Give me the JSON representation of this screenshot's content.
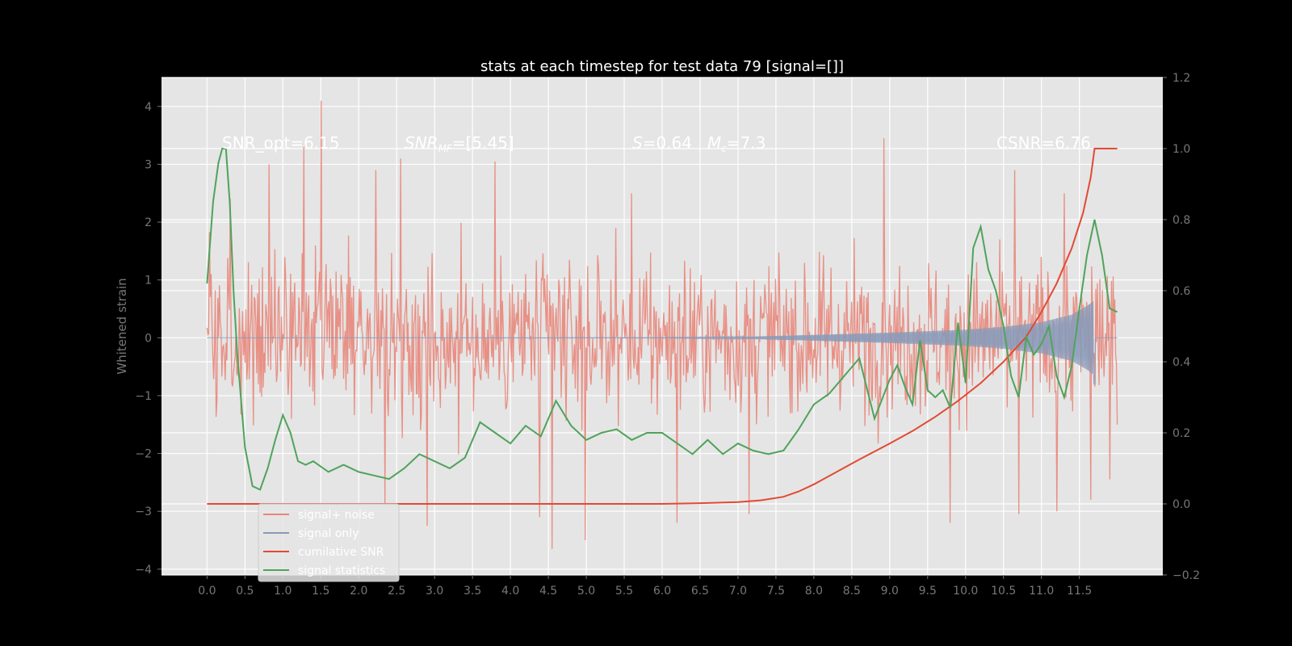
{
  "chart_data": {
    "type": "line",
    "title": "stats at each timestep for test data 79 [signal=[]]",
    "ylabel": "Whitened strain",
    "xlim": [
      -0.6,
      12.6
    ],
    "ylim_left": [
      -4.1,
      4.5
    ],
    "ylim_right": [
      -0.2,
      1.2
    ],
    "x_ticks": [
      0.0,
      0.5,
      1.0,
      1.5,
      2.0,
      2.5,
      3.0,
      3.5,
      4.0,
      4.5,
      5.0,
      5.5,
      6.0,
      6.5,
      7.0,
      7.5,
      8.0,
      8.5,
      9.0,
      9.5,
      10.0,
      10.5,
      11.0,
      11.5
    ],
    "x_tick_labels": [
      "0.0",
      "0.5",
      "1.0",
      "1.5",
      "2.0",
      "2.5",
      "3.0",
      "3.5",
      "4.0",
      "4.5",
      "5.0",
      "5.5",
      "6.0",
      "6.5",
      "7.0",
      "7.5",
      "8.0",
      "8.5",
      "9.0",
      "9.5",
      "10.0",
      "10.5",
      "11.0",
      "11.5"
    ],
    "y_left_ticks": [
      -4,
      -3,
      -2,
      -1,
      0,
      1,
      2,
      3,
      4
    ],
    "y_left_tick_labels": [
      "−4",
      "−3",
      "−2",
      "−1",
      "0",
      "1",
      "2",
      "3",
      "4"
    ],
    "y_right_ticks": [
      -0.2,
      0.0,
      0.2,
      0.4,
      0.6,
      0.8,
      1.0,
      1.2
    ],
    "y_right_tick_labels": [
      "−0.2",
      "0.0",
      "0.2",
      "0.4",
      "0.6",
      "0.8",
      "1.0",
      "1.2"
    ],
    "grid": true,
    "legend_placement": "lower-left",
    "annotations": {
      "snr_opt": "SNR_opt=6.15",
      "snr_mf_base": "SNR",
      "snr_mf_sub": "MF",
      "snr_mf_value": "=[5.45]",
      "s_label": "S",
      "s_value": "=0.64",
      "mc_base": "M",
      "mc_sub": "c",
      "mc_value": "=7.3",
      "csnr": "CSNR=6.76"
    },
    "series": [
      {
        "name": "signal+ noise",
        "color": "#e8867a",
        "axis": "left",
        "x_start": 0.0,
        "x_end": 12.0,
        "amplitude_1sigma": 0.95,
        "peaks": [
          {
            "x": 0.31,
            "y": 2.4
          },
          {
            "x": 0.82,
            "y": 3.0
          },
          {
            "x": 1.28,
            "y": 3.3
          },
          {
            "x": 1.5,
            "y": 4.1
          },
          {
            "x": 2.22,
            "y": 2.9
          },
          {
            "x": 2.55,
            "y": 3.1
          },
          {
            "x": 3.8,
            "y": 3.05
          },
          {
            "x": 5.6,
            "y": 2.5
          },
          {
            "x": 8.92,
            "y": 3.45
          },
          {
            "x": 10.65,
            "y": 2.9
          },
          {
            "x": 11.3,
            "y": 2.5
          },
          {
            "x": 2.35,
            "y": -2.9
          },
          {
            "x": 2.9,
            "y": -3.25
          },
          {
            "x": 4.38,
            "y": -3.1
          },
          {
            "x": 4.55,
            "y": -3.65
          },
          {
            "x": 4.99,
            "y": -3.5
          },
          {
            "x": 6.2,
            "y": -3.2
          },
          {
            "x": 7.15,
            "y": -3.05
          },
          {
            "x": 9.8,
            "y": -3.2
          },
          {
            "x": 10.7,
            "y": -3.05
          },
          {
            "x": 11.2,
            "y": -3.0
          },
          {
            "x": 11.65,
            "y": -2.8
          },
          {
            "x": 11.9,
            "y": -2.45
          }
        ]
      },
      {
        "name": "signal only",
        "color": "#8a9ab8",
        "axis": "left",
        "x_start": 0.0,
        "x_end": 12.0,
        "envelope": [
          [
            0.0,
            0.0
          ],
          [
            6.0,
            0.005
          ],
          [
            7.0,
            0.015
          ],
          [
            8.0,
            0.05
          ],
          [
            9.0,
            0.09
          ],
          [
            10.0,
            0.14
          ],
          [
            10.5,
            0.19
          ],
          [
            11.0,
            0.27
          ],
          [
            11.4,
            0.4
          ],
          [
            11.6,
            0.55
          ],
          [
            11.7,
            0.65
          ],
          [
            11.71,
            0.0
          ],
          [
            12.0,
            0.0
          ]
        ],
        "dip": {
          "x": 11.7,
          "y": -0.8
        }
      },
      {
        "name": "cumilative SNR",
        "color": "#e24a33",
        "axis": "right",
        "x": [
          0.0,
          6.0,
          6.5,
          7.0,
          7.3,
          7.6,
          7.8,
          8.0,
          8.3,
          8.6,
          9.0,
          9.3,
          9.6,
          9.9,
          10.2,
          10.5,
          10.8,
          11.0,
          11.2,
          11.4,
          11.55,
          11.65,
          11.7,
          12.0
        ],
        "y": [
          0.0,
          0.0,
          0.002,
          0.005,
          0.01,
          0.02,
          0.035,
          0.055,
          0.09,
          0.125,
          0.17,
          0.205,
          0.245,
          0.29,
          0.34,
          0.4,
          0.47,
          0.54,
          0.62,
          0.72,
          0.82,
          0.92,
          1.0,
          1.0
        ]
      },
      {
        "name": "signal statistics",
        "color": "#4fa35a",
        "axis": "right",
        "x": [
          0.0,
          0.08,
          0.15,
          0.2,
          0.25,
          0.3,
          0.35,
          0.4,
          0.5,
          0.6,
          0.7,
          0.8,
          0.9,
          1.0,
          1.1,
          1.2,
          1.3,
          1.4,
          1.6,
          1.8,
          2.0,
          2.2,
          2.4,
          2.6,
          2.8,
          3.0,
          3.2,
          3.4,
          3.6,
          3.8,
          4.0,
          4.2,
          4.4,
          4.6,
          4.8,
          5.0,
          5.2,
          5.4,
          5.6,
          5.8,
          6.0,
          6.2,
          6.4,
          6.6,
          6.8,
          7.0,
          7.2,
          7.4,
          7.6,
          7.8,
          8.0,
          8.2,
          8.4,
          8.6,
          8.8,
          9.0,
          9.1,
          9.2,
          9.3,
          9.4,
          9.5,
          9.6,
          9.7,
          9.8,
          9.9,
          10.0,
          10.1,
          10.2,
          10.3,
          10.4,
          10.5,
          10.6,
          10.7,
          10.8,
          10.9,
          11.0,
          11.1,
          11.2,
          11.3,
          11.4,
          11.5,
          11.6,
          11.7,
          11.8,
          11.9,
          12.0
        ],
        "y": [
          0.62,
          0.85,
          0.96,
          1.0,
          1.0,
          0.85,
          0.6,
          0.42,
          0.16,
          0.05,
          0.04,
          0.1,
          0.18,
          0.25,
          0.2,
          0.12,
          0.11,
          0.12,
          0.09,
          0.11,
          0.09,
          0.08,
          0.07,
          0.1,
          0.14,
          0.12,
          0.1,
          0.13,
          0.23,
          0.2,
          0.17,
          0.22,
          0.19,
          0.29,
          0.22,
          0.18,
          0.2,
          0.21,
          0.18,
          0.2,
          0.2,
          0.17,
          0.14,
          0.18,
          0.14,
          0.17,
          0.15,
          0.14,
          0.15,
          0.21,
          0.28,
          0.31,
          0.36,
          0.41,
          0.24,
          0.35,
          0.39,
          0.33,
          0.28,
          0.46,
          0.32,
          0.3,
          0.32,
          0.27,
          0.51,
          0.34,
          0.72,
          0.78,
          0.66,
          0.6,
          0.5,
          0.36,
          0.3,
          0.47,
          0.42,
          0.45,
          0.5,
          0.36,
          0.3,
          0.39,
          0.55,
          0.7,
          0.8,
          0.7,
          0.55,
          0.54
        ]
      }
    ]
  }
}
